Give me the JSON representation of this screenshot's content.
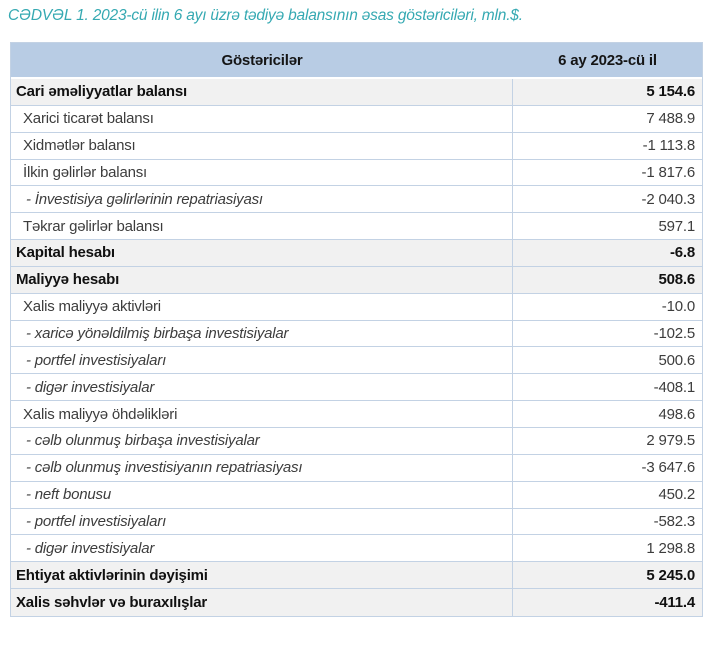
{
  "title": "CƏDVƏL 1. 2023-cü ilin 6 ayı üzrə tədiyə balansının əsas göstəriciləri, mln.$.",
  "colors": {
    "title_text": "#35a9b2",
    "header_bg": "#b8cce4",
    "row_alt_bg": "#f1f1f1",
    "border": "#c3d2e4"
  },
  "table": {
    "columns": {
      "indicators": "Göstəricilər",
      "period": "6 ay 2023-cü il"
    },
    "rows": [
      {
        "label": "Cari əməliyyatlar balansı",
        "value": "5 154.6",
        "style": "section"
      },
      {
        "label": "Xarici ticarət balansı",
        "value": "7 488.9",
        "style": "item"
      },
      {
        "label": "Xidmətlər balansı",
        "value": "-1 113.8",
        "style": "item"
      },
      {
        "label": "İlkin gəlirlər balansı",
        "value": "-1 817.6",
        "style": "item"
      },
      {
        "label": "- İnvestisiya gəlirlərinin repatriasiyası",
        "value": "-2 040.3",
        "style": "subitem"
      },
      {
        "label": "Təkrar gəlirlər balansı",
        "value": "597.1",
        "style": "item"
      },
      {
        "label": "Kapital hesabı",
        "value": "-6.8",
        "style": "section"
      },
      {
        "label": "Maliyyə hesabı",
        "value": "508.6",
        "style": "section"
      },
      {
        "label": "Xalis maliyyə aktivləri",
        "value": "-10.0",
        "style": "item"
      },
      {
        "label": "- xaricə yönəldilmiş birbaşa investisiyalar",
        "value": "-102.5",
        "style": "subitem"
      },
      {
        "label": "- portfel investisiyaları",
        "value": "500.6",
        "style": "subitem"
      },
      {
        "label": "- digər investisiyalar",
        "value": "-408.1",
        "style": "subitem"
      },
      {
        "label": "Xalis maliyyə öhdəlikləri",
        "value": "498.6",
        "style": "item"
      },
      {
        "label": "- cəlb olunmuş birbaşa investisiyalar",
        "value": "2 979.5",
        "style": "subitem"
      },
      {
        "label": "- cəlb olunmuş investisiyanın repatriasiyası",
        "value": "-3 647.6",
        "style": "subitem"
      },
      {
        "label": "- neft bonusu",
        "value": "450.2",
        "style": "subitem"
      },
      {
        "label": "- portfel investisiyaları",
        "value": "-582.3",
        "style": "subitem"
      },
      {
        "label": "- digər investisiyalar",
        "value": "1 298.8",
        "style": "subitem"
      },
      {
        "label": "Ehtiyat aktivlərinin dəyişimi",
        "value": "5 245.0",
        "style": "section"
      },
      {
        "label": "Xalis səhvlər və buraxılışlar",
        "value": "-411.4",
        "style": "section"
      }
    ]
  }
}
